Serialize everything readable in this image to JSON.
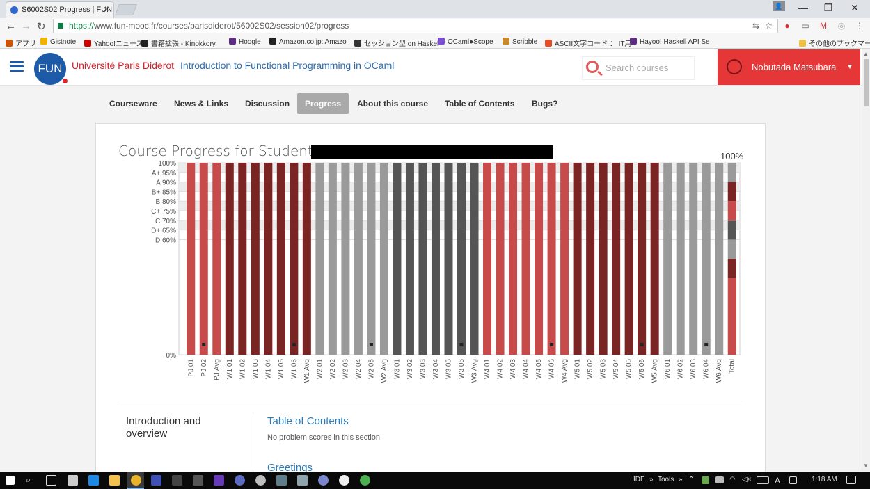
{
  "browser": {
    "tab_title": "S6002S02 Progress | FUN",
    "tab_close": "✕",
    "url_secure": "https://",
    "url_rest": "www.fun-mooc.fr/courses/parisdiderot/56002S02/session02/progress",
    "window_controls": [
      "—",
      "❐",
      "✕"
    ]
  },
  "bookmarks": [
    {
      "label": "アプリ",
      "color": "#d35400"
    },
    {
      "label": "Gistnote",
      "color": "#f0b400"
    },
    {
      "label": "Yahoo!ニュース",
      "color": "#c00"
    },
    {
      "label": "書籍拡張 - Kinokkory",
      "color": "#222"
    },
    {
      "label": "Hoogle",
      "color": "#5a2d82"
    },
    {
      "label": "Amazon.co.jp: Amazo",
      "color": "#222"
    },
    {
      "label": "セッション型 on Haskel",
      "color": "#333"
    },
    {
      "label": "OCaml●Scope",
      "color": "#7b4fd6"
    },
    {
      "label": "Scribble",
      "color": "#c98a2b"
    },
    {
      "label": "ASCII文字コード ： IT用",
      "color": "#e44d26"
    },
    {
      "label": "Hayoo! Haskell API Se",
      "color": "#5a2d82"
    },
    {
      "label": "その他のブックマーク",
      "color": "#f0c040"
    }
  ],
  "site": {
    "logo_text": "FUN",
    "university": "Université Paris Diderot",
    "course": "Introduction to Functional Programming in OCaml",
    "search_placeholder": "Search courses",
    "user_name": "Nobutada Matsubara",
    "user_caret": "▼"
  },
  "nav": {
    "items": [
      "Courseware",
      "News & Links",
      "Discussion",
      "Progress",
      "About this course",
      "Table of Contents",
      "Bugs?"
    ],
    "active": "Progress"
  },
  "progress": {
    "title": "Course Progress for Student",
    "total_label": "100%"
  },
  "chart_data": {
    "type": "bar",
    "y_ticks": [
      "100%",
      "A+ 95%",
      "A 90%",
      "B+ 85%",
      "B 80%",
      "C+ 75%",
      "C 70%",
      "D+ 65%",
      "D 60%",
      "0%"
    ],
    "y_tick_values": [
      100,
      95,
      90,
      85,
      80,
      75,
      70,
      65,
      60,
      0
    ],
    "ylim": [
      0,
      100
    ],
    "categories": [
      "PJ 01",
      "PJ 02",
      "PJ Avg",
      "W1 01",
      "W1 02",
      "W1 03",
      "W1 04",
      "W1 05",
      "W1 06",
      "W1 Avg",
      "W2 01",
      "W2 02",
      "W2 03",
      "W2 04",
      "W2 05",
      "W2 Avg",
      "W3 01",
      "W3 02",
      "W3 03",
      "W3 04",
      "W3 05",
      "W3 06",
      "W3 Avg",
      "W4 01",
      "W4 02",
      "W4 03",
      "W4 04",
      "W4 05",
      "W4 06",
      "W4 Avg",
      "W5 01",
      "W5 02",
      "W5 03",
      "W5 04",
      "W5 05",
      "W5 06",
      "W5 Avg",
      "W6 01",
      "W6 02",
      "W6 03",
      "W6 04",
      "W6 Avg",
      "Total"
    ],
    "values": [
      100,
      100,
      100,
      100,
      100,
      100,
      100,
      100,
      100,
      100,
      100,
      100,
      100,
      100,
      100,
      100,
      100,
      100,
      100,
      100,
      100,
      100,
      100,
      100,
      100,
      100,
      100,
      100,
      100,
      100,
      100,
      100,
      100,
      100,
      100,
      100,
      100,
      100,
      100,
      100,
      100,
      100,
      100
    ],
    "dropped": [
      "PJ 02",
      "W1 06",
      "W2 05",
      "W3 06",
      "W4 06",
      "W5 06",
      "W6 04"
    ],
    "group_colors": {
      "PJ": "#c84b4b",
      "W1": "#7a2424",
      "W2": "#9a9a9a",
      "W3": "#555555",
      "W4": "#c84b4b",
      "W5": "#7a2424",
      "W6": "#9a9a9a"
    },
    "total_segments": [
      {
        "from": 0,
        "to": 40,
        "color": "#c84b4b"
      },
      {
        "from": 40,
        "to": 50,
        "color": "#7a2424"
      },
      {
        "from": 50,
        "to": 60,
        "color": "#9a9a9a"
      },
      {
        "from": 60,
        "to": 70,
        "color": "#555555"
      },
      {
        "from": 70,
        "to": 80,
        "color": "#c84b4b"
      },
      {
        "from": 80,
        "to": 90,
        "color": "#7a2424"
      },
      {
        "from": 90,
        "to": 100,
        "color": "#9a9a9a"
      }
    ],
    "title": "",
    "xlabel": "",
    "ylabel": "",
    "grid": true
  },
  "sections": {
    "chapter": "Introduction and overview",
    "links": [
      "Table of Contents",
      "Greetings"
    ],
    "no_scores_note": "No problem scores in this section"
  },
  "taskbar": {
    "ide_label": "IDE",
    "tools_label": "Tools",
    "chevron": "»",
    "time": "1:18 AM"
  }
}
